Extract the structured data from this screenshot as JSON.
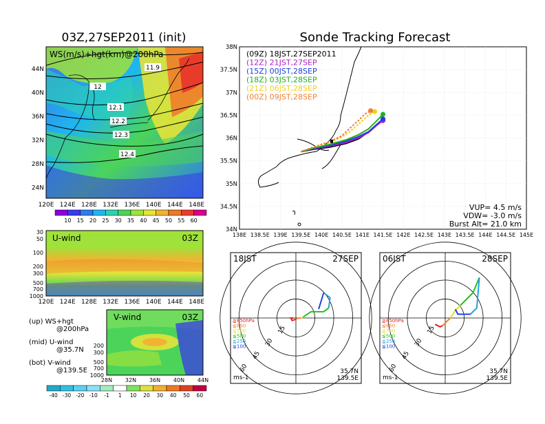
{
  "left_title": "03Z,27SEP2011 (init)",
  "right_title": "Sonde Tracking Forecast",
  "map_panel": {
    "label": "WS(m/s)+hgt(km)@200hPa",
    "xticks": [
      "120E",
      "124E",
      "128E",
      "132E",
      "136E",
      "140E",
      "144E",
      "148E"
    ],
    "yticks": [
      "44N",
      "40N",
      "36N",
      "32N",
      "28N",
      "24N"
    ],
    "contours": [
      "11.9",
      "12",
      "12.1",
      "12.2",
      "12.3",
      "12.4"
    ]
  },
  "ws_colorbar": {
    "labels": [
      "10",
      "15",
      "20",
      "25",
      "30",
      "35",
      "40",
      "45",
      "50",
      "55",
      "60"
    ],
    "colors": [
      "#8a00d9",
      "#3a3ae8",
      "#2c7cf0",
      "#1fb6f0",
      "#2dd0b0",
      "#4cd45a",
      "#9fe23a",
      "#e3e33a",
      "#f0b432",
      "#f07828",
      "#e83c2a",
      "#d8008a"
    ]
  },
  "u_panel": {
    "label": "U-wind",
    "time": "03Z",
    "yticks": [
      "30",
      "50",
      "100",
      "200",
      "300",
      "500",
      "700",
      "1000"
    ],
    "xticks": [
      "120E",
      "124E",
      "128E",
      "132E",
      "136E",
      "140E",
      "144E",
      "148E"
    ]
  },
  "v_panel": {
    "label": "V-wind",
    "time": "03Z",
    "yticks": [
      "200",
      "300",
      "500",
      "700",
      "1000"
    ],
    "xticks": [
      "28N",
      "32N",
      "36N",
      "40N",
      "44N"
    ]
  },
  "legend_notes": {
    "up_1": "(up) WS+hgt",
    "up_2": "@200hPa",
    "mid_1": "(mid) U-wind",
    "mid_2": "@35.7N",
    "bot_1": "(bot) V-wind",
    "bot_2": "@139.5E"
  },
  "v_colorbar": {
    "labels": [
      "-40",
      "-30",
      "-20",
      "-10",
      "-1",
      "1",
      "10",
      "20",
      "30",
      "40",
      "50",
      "60"
    ],
    "colors": [
      "#20a8c8",
      "#30c0e0",
      "#5cd0f0",
      "#8ae0f8",
      "#a0ecc0",
      "#ffffff",
      "#80e060",
      "#e0e040",
      "#f0b030",
      "#f07820",
      "#e04020",
      "#c00040"
    ]
  },
  "track_panel": {
    "yticks": [
      "38N",
      "37.5N",
      "37N",
      "36.5N",
      "36N",
      "35.5N",
      "35N",
      "34.5N",
      "34N"
    ],
    "xticks": [
      "138E",
      "138.5E",
      "139E",
      "139.5E",
      "140E",
      "140.5E",
      "141E",
      "141.5E",
      "142E",
      "142.5E",
      "143E",
      "143.5E",
      "144E",
      "144.5E",
      "145E"
    ],
    "vup": "VUP=  4.5 m/s",
    "vdw": "VDW= -3.0 m/s",
    "burst": "Burst Alt= 21.0 km"
  },
  "chart_data": {
    "type": "line",
    "title": "Sonde Tracking Forecast",
    "xlim": [
      138,
      145
    ],
    "ylim": [
      34,
      38
    ],
    "series": [
      {
        "name": "(09Z) 18JST,27SEP2011",
        "color": "#000000",
        "lon": [
          139.5,
          139.8,
          140.2,
          140.6,
          140.9,
          141.1,
          141.3,
          141.5
        ],
        "lat": [
          35.7,
          35.75,
          35.8,
          35.88,
          35.98,
          36.1,
          36.25,
          36.4
        ]
      },
      {
        "name": "(12Z) 21JST,27SEP",
        "color": "#b020c0",
        "lon": [
          139.5,
          139.8,
          140.2,
          140.6,
          140.9,
          141.15,
          141.35,
          141.5
        ],
        "lat": [
          35.7,
          35.76,
          35.82,
          35.9,
          36.0,
          36.12,
          36.28,
          36.38
        ]
      },
      {
        "name": "(15Z) 00JST,28SEP",
        "color": "#2040e0",
        "lon": [
          139.5,
          139.8,
          140.2,
          140.6,
          140.9,
          141.15,
          141.35,
          141.5
        ],
        "lat": [
          35.7,
          35.77,
          35.84,
          35.93,
          36.03,
          36.14,
          36.3,
          36.42
        ]
      },
      {
        "name": "(18Z) 03JST,28SEP",
        "color": "#20b020",
        "lon": [
          139.5,
          139.8,
          140.2,
          140.6,
          140.9,
          141.15,
          141.35,
          141.5
        ],
        "lat": [
          35.7,
          35.78,
          35.86,
          35.96,
          36.07,
          36.2,
          36.38,
          36.52
        ]
      },
      {
        "name": "(21Z) 06JST,28SEP",
        "color": "#f0d020",
        "lon": [
          139.5,
          139.8,
          140.2,
          140.5,
          140.75,
          140.95,
          141.15,
          141.3
        ],
        "lat": [
          35.7,
          35.8,
          35.9,
          36.02,
          36.18,
          36.34,
          36.5,
          36.58
        ]
      },
      {
        "name": "(00Z) 09JST,28SEP",
        "color": "#f08030",
        "lon": [
          139.5,
          139.8,
          140.2,
          140.5,
          140.7,
          140.9,
          141.05,
          141.2
        ],
        "lat": [
          35.7,
          35.8,
          35.92,
          36.05,
          36.22,
          36.38,
          36.52,
          36.6
        ]
      }
    ]
  },
  "hodo_left": {
    "time": "18JST",
    "date": "27SEP",
    "ring_labels": [
      "15",
      "30",
      "45",
      "60"
    ],
    "legend": [
      "≧850hPa",
      "≦850",
      "≦700",
      "≦500",
      "≦250",
      "≦100"
    ],
    "legend_colors": [
      "#e02020",
      "#f08030",
      "#e0e020",
      "#20c020",
      "#20a0e0",
      "#2040e0"
    ],
    "units": "ms-1",
    "lat": "35.7N",
    "lon": "139.5E",
    "segments": [
      {
        "color": "#e02020",
        "u": [
          -2,
          -4,
          -3,
          0
        ],
        "v": [
          0,
          0,
          -2,
          -1
        ]
      },
      {
        "color": "#f08030",
        "u": [
          0,
          2,
          4
        ],
        "v": [
          -1,
          0,
          0
        ]
      },
      {
        "color": "#e0e020",
        "u": [
          4,
          6
        ],
        "v": [
          0,
          1
        ]
      },
      {
        "color": "#20c020",
        "u": [
          6,
          12,
          22,
          26
        ],
        "v": [
          1,
          5,
          5,
          8
        ]
      },
      {
        "color": "#20a0e0",
        "u": [
          26,
          27,
          22
        ],
        "v": [
          8,
          16,
          20
        ]
      },
      {
        "color": "#2040e0",
        "u": [
          22,
          18
        ],
        "v": [
          20,
          7
        ]
      }
    ]
  },
  "hodo_right": {
    "time": "06JST",
    "date": "28SEP",
    "ring_labels": [
      "15",
      "30",
      "45",
      "60"
    ],
    "legend": [
      "≧850hPa",
      "≦850",
      "≦700",
      "≦500",
      "≦250",
      "≦100"
    ],
    "legend_colors": [
      "#e02020",
      "#f08030",
      "#e0e020",
      "#20c020",
      "#20a0e0",
      "#2040e0"
    ],
    "units": "ms-1",
    "lat": "35.7N",
    "lon": "139.5E",
    "segments": [
      {
        "color": "#e02020",
        "u": [
          -8,
          -4,
          -2
        ],
        "v": [
          -5,
          -7,
          -6
        ]
      },
      {
        "color": "#f08030",
        "u": [
          -2,
          2,
          4
        ],
        "v": [
          -6,
          -2,
          0
        ]
      },
      {
        "color": "#e0e020",
        "u": [
          4,
          8,
          12
        ],
        "v": [
          0,
          6,
          10
        ]
      },
      {
        "color": "#20c020",
        "u": [
          12,
          22,
          27
        ],
        "v": [
          10,
          20,
          32
        ]
      },
      {
        "color": "#20a0e0",
        "u": [
          27,
          25,
          20
        ],
        "v": [
          32,
          8,
          3
        ]
      },
      {
        "color": "#2040e0",
        "u": [
          20,
          10,
          8
        ],
        "v": [
          3,
          3,
          7
        ]
      }
    ]
  }
}
